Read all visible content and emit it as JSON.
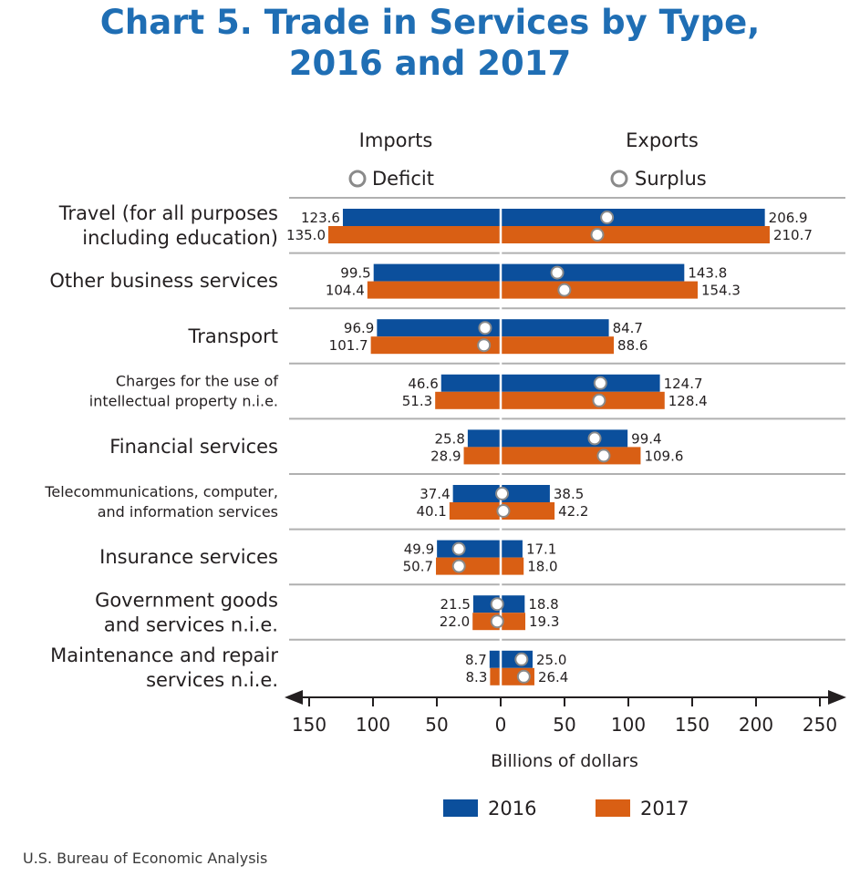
{
  "title_line1": "Chart 5. Trade in Services by Type,",
  "title_line2": "2016 and 2017",
  "source": "U.S. Bureau of Economic Analysis",
  "chart_data": {
    "type": "bar",
    "orientation": "horizontal-diverging",
    "left_header": "Imports",
    "right_header": "Exports",
    "left_marker_label": "Deficit",
    "right_marker_label": "Surplus",
    "xlabel": "Billions of dollars",
    "xlim": [
      -150,
      250
    ],
    "xticks": [
      -150,
      -100,
      -50,
      0,
      50,
      100,
      150,
      200,
      250
    ],
    "xtick_labels": [
      "150",
      "100",
      "50",
      "0",
      "50",
      "100",
      "150",
      "200",
      "250"
    ],
    "categories": [
      [
        "Travel (for all purposes",
        "including education)"
      ],
      [
        "Other business services"
      ],
      [
        "Transport"
      ],
      [
        "Charges for the use of",
        "intellectual property n.i.e."
      ],
      [
        "Financial services"
      ],
      [
        "Telecommunications, computer,",
        "and information services"
      ],
      [
        "Insurance services"
      ],
      [
        "Government goods",
        "and services n.i.e."
      ],
      [
        "Maintenance and repair",
        "services n.i.e."
      ]
    ],
    "series": [
      {
        "name": "2016",
        "color": "#0b4f9c",
        "imports": [
          123.6,
          99.5,
          96.9,
          46.6,
          25.8,
          37.4,
          49.9,
          21.5,
          8.7
        ],
        "exports": [
          206.9,
          143.8,
          84.7,
          124.7,
          99.4,
          38.5,
          17.1,
          18.8,
          25.0
        ],
        "import_labels": [
          "123.6",
          "99.5",
          "96.9",
          "46.6",
          "25.8",
          "37.4",
          "49.9",
          "21.5",
          "8.7"
        ],
        "export_labels": [
          "206.9",
          "143.8",
          "84.7",
          "124.7",
          "99.4",
          "38.5",
          "17.1",
          "18.8",
          "25.0"
        ]
      },
      {
        "name": "2017",
        "color": "#d95f14",
        "imports": [
          135.0,
          104.4,
          101.7,
          51.3,
          28.9,
          40.1,
          50.7,
          22.0,
          8.3
        ],
        "exports": [
          210.7,
          154.3,
          88.6,
          128.4,
          109.6,
          42.2,
          18.0,
          19.3,
          26.4
        ],
        "import_labels": [
          "135.0",
          "104.4",
          "101.7",
          "51.3",
          "28.9",
          "40.1",
          "50.7",
          "22.0",
          "8.3"
        ],
        "export_labels": [
          "210.7",
          "154.3",
          "88.6",
          "128.4",
          "109.6",
          "42.2",
          "18.0",
          "19.3",
          "26.4"
        ]
      }
    ],
    "balance_marker_note": "circle markers at exports minus imports",
    "legend": [
      "2016",
      "2017"
    ],
    "legend_position": "bottom",
    "grid": false
  }
}
